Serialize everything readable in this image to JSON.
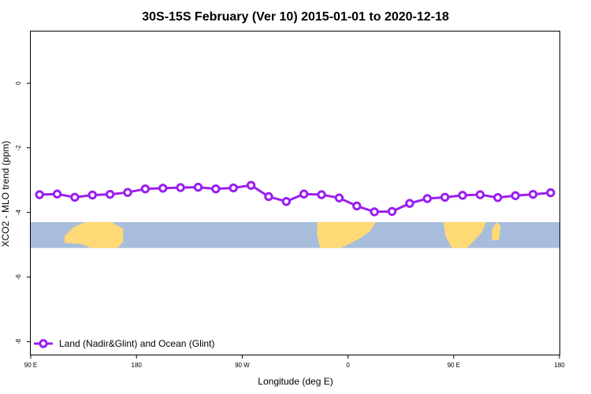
{
  "chart_data": {
    "type": "line",
    "title": "30S-15S February (Ver 10)   2015-01-01 to 2020-12-18",
    "xlabel": "Longitude (deg E)",
    "ylabel": "XCO2 - MLO trend (ppm)",
    "xlim": [
      90,
      450
    ],
    "ylim": [
      -8.4,
      1.6
    ],
    "x_ticks": [
      {
        "value": 90,
        "label": "90 E"
      },
      {
        "value": 162,
        "label": "180"
      },
      {
        "value": 234,
        "label": "90 W"
      },
      {
        "value": 306,
        "label": "0"
      },
      {
        "value": 378,
        "label": "90 E"
      },
      {
        "value": 450,
        "label": "180"
      }
    ],
    "y_ticks": [
      {
        "value": 0,
        "label": "0"
      },
      {
        "value": -2,
        "label": "-2"
      },
      {
        "value": -4,
        "label": "-4"
      },
      {
        "value": -6,
        "label": "-6"
      },
      {
        "value": -8,
        "label": "-8"
      }
    ],
    "grid": false,
    "legend_position": "bottom-left",
    "series": [
      {
        "name": "Land (Nadir&Glint) and Ocean (Glint)",
        "color": "#9b1ff0",
        "x": [
          96,
          108,
          120,
          132,
          144,
          156,
          168,
          180,
          192,
          204,
          216,
          228,
          240,
          252,
          264,
          276,
          288,
          300,
          312,
          324,
          336,
          348,
          360,
          372,
          384,
          396,
          408,
          420,
          432,
          444
        ],
        "y": [
          -3.45,
          -3.43,
          -3.53,
          -3.46,
          -3.44,
          -3.38,
          -3.27,
          -3.25,
          -3.23,
          -3.22,
          -3.27,
          -3.24,
          -3.16,
          -3.51,
          -3.66,
          -3.43,
          -3.45,
          -3.55,
          -3.8,
          -3.98,
          -3.97,
          -3.72,
          -3.57,
          -3.53,
          -3.47,
          -3.45,
          -3.54,
          -3.48,
          -3.44,
          -3.39
        ]
      }
    ],
    "map_band": {
      "ocean_color": "#a7bddb",
      "land_color": "#fed976",
      "lat_range": [
        -30,
        -15
      ],
      "y_range": [
        -5.1,
        -4.3
      ],
      "landmasses": [
        {
          "name": "Australia",
          "lon_range": [
            113,
            153
          ]
        },
        {
          "name": "South America",
          "lon_range": [
            -75,
            -35
          ]
        },
        {
          "name": "Africa",
          "lon_range": [
            11,
            40
          ]
        },
        {
          "name": "Madagascar",
          "lon_range": [
            44,
            50
          ]
        }
      ]
    }
  }
}
